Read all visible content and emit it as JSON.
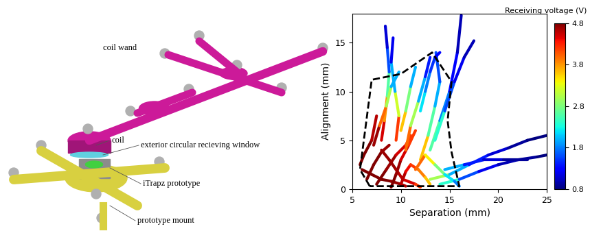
{
  "diagram": {
    "labels": [
      "coil wand",
      "coil",
      "exterior circular recieving window",
      "iTrapz prototype",
      "prototype mount"
    ]
  },
  "chart_data": {
    "type": "line",
    "x_label": "Separation (mm)",
    "y_label": "Alignment (mm)",
    "xlim": [
      5,
      25
    ],
    "ylim": [
      0,
      18
    ],
    "xticks": [
      5,
      10,
      15,
      20,
      25
    ],
    "yticks": [
      0,
      5,
      10,
      15
    ],
    "colorbar": {
      "label": "Receiving voltage (V)",
      "range": [
        0.8,
        4.8
      ],
      "ticks": [
        0.8,
        1.8,
        2.8,
        3.8,
        4.8
      ]
    },
    "boundary": {
      "color": "black",
      "line_style": "dashed",
      "x": [
        6.8,
        5.8,
        7.0,
        10.0,
        13.2,
        15.2,
        14.8,
        15.2,
        16.0,
        6.8
      ],
      "values": [
        0.3,
        2.0,
        11.2,
        11.8,
        14.0,
        11.0,
        7.0,
        3.8,
        0.3,
        0.3
      ]
    },
    "series": [
      {
        "x": [
          6.0,
          7.0,
          8.0,
          9.0,
          10.0,
          10.5
        ],
        "values": [
          2.0,
          1.5,
          1.0,
          0.8,
          0.5,
          0.3
        ],
        "voltage": [
          4.8,
          4.8,
          4.8,
          4.7,
          4.6,
          4.5
        ]
      },
      {
        "x": [
          7.5,
          8.5,
          9.5,
          10.5,
          11.0
        ],
        "values": [
          0.5,
          2.0,
          3.5,
          4.5,
          5.5
        ],
        "voltage": [
          4.8,
          4.7,
          4.5,
          4.2,
          3.9
        ]
      },
      {
        "x": [
          8.0,
          8.8,
          9.5,
          10.2,
          11.5,
          12.0
        ],
        "values": [
          4.0,
          3.0,
          2.0,
          1.0,
          0.5,
          0.2
        ],
        "voltage": [
          4.7,
          4.7,
          4.6,
          4.5,
          4.2,
          4.0
        ]
      },
      {
        "x": [
          9.0,
          9.5,
          10.0,
          10.8,
          11.5
        ],
        "values": [
          0.2,
          1.5,
          3.0,
          4.5,
          6.0
        ],
        "voltage": [
          4.8,
          4.7,
          4.5,
          4.2,
          3.8
        ]
      },
      {
        "x": [
          6.5,
          7.2,
          8.0,
          8.8
        ],
        "values": [
          1.0,
          2.5,
          3.8,
          4.5
        ],
        "voltage": [
          4.8,
          4.8,
          4.7,
          4.6
        ]
      },
      {
        "x": [
          10.0,
          10.5,
          11.0,
          11.8,
          12.5,
          13.0
        ],
        "values": [
          0.5,
          1.8,
          2.5,
          2.0,
          1.2,
          0.5
        ],
        "voltage": [
          4.6,
          4.4,
          4.2,
          3.9,
          3.6,
          3.3
        ]
      },
      {
        "x": [
          8.0,
          8.3,
          8.6,
          8.8,
          8.6,
          8.4
        ],
        "values": [
          5.0,
          7.0,
          9.5,
          12.0,
          14.5,
          16.7
        ],
        "voltage": [
          4.5,
          3.8,
          2.6,
          1.6,
          1.1,
          0.9
        ]
      },
      {
        "x": [
          9.5,
          9.8,
          9.4,
          9.0,
          9.2
        ],
        "values": [
          5.0,
          7.5,
          10.0,
          13.0,
          15.5
        ],
        "voltage": [
          4.2,
          3.2,
          2.0,
          1.2,
          0.9
        ]
      },
      {
        "x": [
          10.5,
          11.0,
          11.8,
          12.5,
          13.0
        ],
        "values": [
          4.0,
          6.5,
          9.0,
          11.5,
          13.5
        ],
        "voltage": [
          4.0,
          3.0,
          2.0,
          1.4,
          1.0
        ]
      },
      {
        "x": [
          12.0,
          12.8,
          13.5,
          14.0,
          13.6
        ],
        "values": [
          3.0,
          5.5,
          8.5,
          11.0,
          14.0
        ],
        "voltage": [
          3.6,
          2.6,
          2.0,
          1.6,
          1.9
        ]
      },
      {
        "x": [
          13.0,
          14.0,
          15.0,
          15.8,
          16.2
        ],
        "values": [
          4.0,
          7.0,
          10.0,
          14.0,
          17.8
        ],
        "voltage": [
          2.6,
          1.8,
          1.3,
          1.0,
          0.9
        ]
      },
      {
        "x": [
          13.5,
          14.5,
          15.5,
          16.5,
          17.5
        ],
        "values": [
          5.0,
          8.0,
          11.0,
          13.5,
          15.2
        ],
        "voltage": [
          2.4,
          1.6,
          1.2,
          1.0,
          0.9
        ]
      },
      {
        "x": [
          7.2,
          7.8,
          8.5,
          9.0,
          9.8
        ],
        "values": [
          4.5,
          6.5,
          8.5,
          10.5,
          12.0
        ],
        "voltage": [
          4.7,
          4.0,
          3.0,
          2.0,
          1.4
        ]
      },
      {
        "x": [
          13.0,
          15.0,
          17.0,
          19.0,
          21.0,
          23.0,
          25.0
        ],
        "values": [
          1.0,
          1.5,
          2.5,
          3.5,
          4.2,
          5.0,
          5.5
        ],
        "voltage": [
          3.0,
          2.0,
          1.4,
          1.1,
          0.9,
          0.8,
          0.8
        ]
      },
      {
        "x": [
          14.0,
          16.0,
          18.0,
          20.0,
          22.0,
          24.0,
          25.0
        ],
        "values": [
          0.5,
          1.0,
          1.8,
          2.5,
          3.0,
          3.3,
          3.5
        ],
        "voltage": [
          2.4,
          1.6,
          1.2,
          1.0,
          0.9,
          0.8,
          0.8
        ]
      },
      {
        "x": [
          14.5,
          16.5,
          18.5,
          20.5,
          23.0
        ],
        "values": [
          2.0,
          2.5,
          3.0,
          3.0,
          3.0
        ],
        "voltage": [
          2.0,
          1.4,
          1.1,
          0.9,
          0.8
        ]
      },
      {
        "x": [
          11.5,
          12.5,
          13.5,
          14.5,
          15.5,
          16.0
        ],
        "values": [
          2.0,
          3.5,
          2.5,
          1.5,
          0.8,
          0.3
        ],
        "voltage": [
          4.0,
          3.4,
          2.8,
          2.2,
          1.8,
          1.6
        ]
      },
      {
        "x": [
          5.8,
          6.2,
          7.0,
          7.5
        ],
        "values": [
          2.5,
          3.5,
          5.0,
          7.5
        ],
        "voltage": [
          4.8,
          4.8,
          4.6,
          4.2
        ]
      },
      {
        "x": [
          12.0,
          12.5,
          13.0,
          13.5,
          14.0
        ],
        "values": [
          8.0,
          10.0,
          12.0,
          13.5,
          14.0
        ],
        "voltage": [
          2.2,
          1.8,
          1.5,
          1.3,
          2.4
        ]
      },
      {
        "x": [
          10.0,
          10.5,
          11.0,
          11.5
        ],
        "values": [
          6.0,
          8.0,
          10.5,
          12.5
        ],
        "voltage": [
          3.6,
          2.8,
          2.0,
          1.5
        ]
      }
    ]
  }
}
